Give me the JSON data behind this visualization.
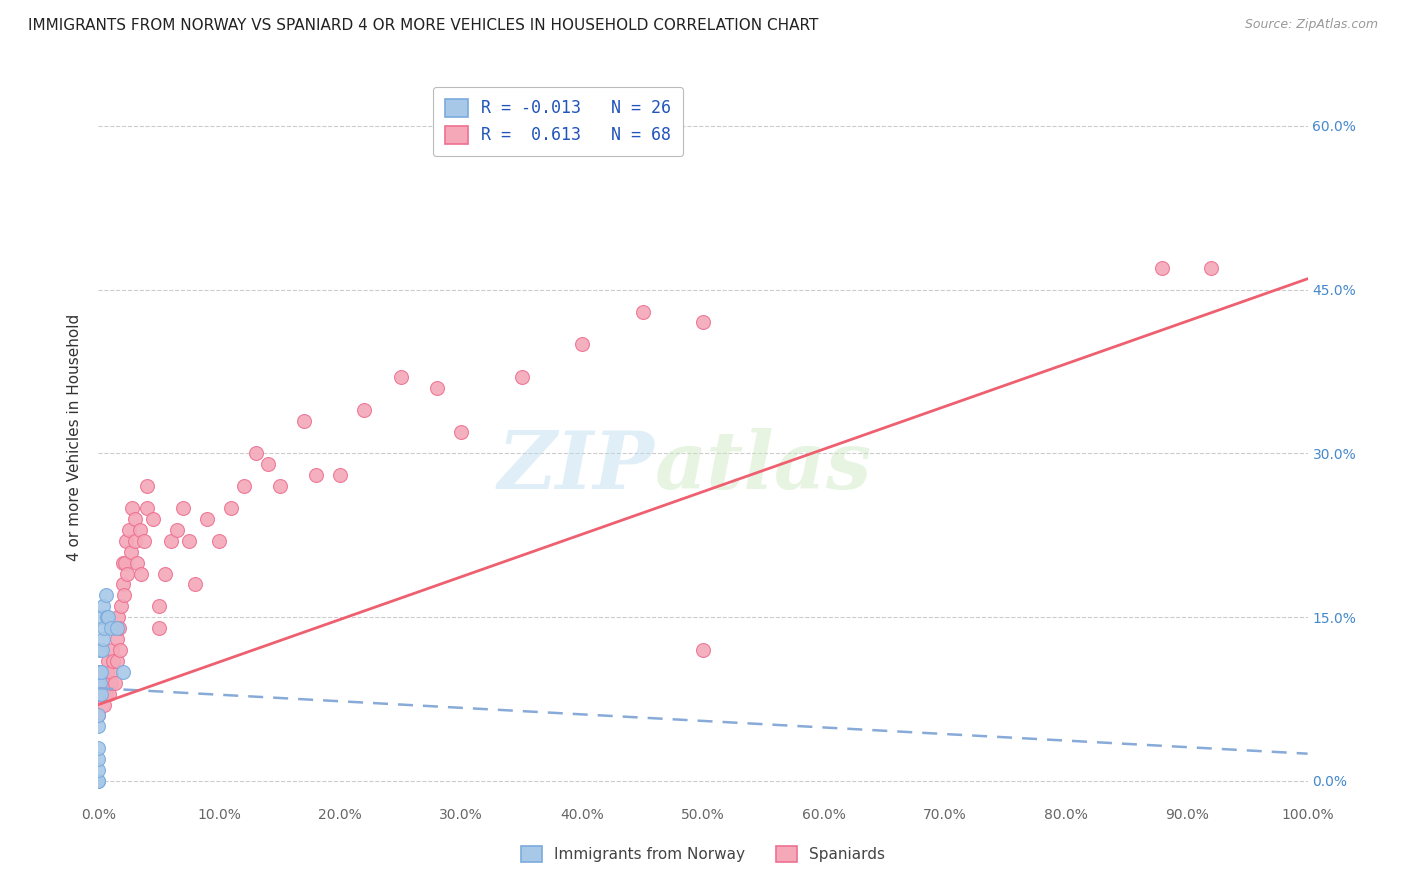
{
  "title": "IMMIGRANTS FROM NORWAY VS SPANIARD 4 OR MORE VEHICLES IN HOUSEHOLD CORRELATION CHART",
  "source": "Source: ZipAtlas.com",
  "ylabel": "4 or more Vehicles in Household",
  "xlim": [
    0,
    1.0
  ],
  "ylim": [
    -0.02,
    0.65
  ],
  "xticks": [
    0.0,
    0.1,
    0.2,
    0.3,
    0.4,
    0.5,
    0.6,
    0.7,
    0.8,
    0.9,
    1.0
  ],
  "xticklabels": [
    "0.0%",
    "10.0%",
    "20.0%",
    "30.0%",
    "40.0%",
    "50.0%",
    "60.0%",
    "70.0%",
    "80.0%",
    "90.0%",
    "100.0%"
  ],
  "yticks": [
    0.0,
    0.15,
    0.3,
    0.45,
    0.6
  ],
  "yticklabels_right": [
    "0.0%",
    "15.0%",
    "30.0%",
    "45.0%",
    "60.0%"
  ],
  "norway_color": "#a8c8e8",
  "spain_color": "#f4a8b8",
  "norway_edge_color": "#7aaadd",
  "spain_edge_color": "#ee7090",
  "norway_line_color": "#88aad8",
  "spain_line_color": "#ee6070",
  "norway_R": -0.013,
  "norway_N": 26,
  "spain_R": 0.613,
  "spain_N": 68,
  "norway_x": [
    0.0,
    0.0,
    0.0,
    0.0,
    0.0,
    0.0,
    0.0,
    0.0,
    0.0,
    0.0,
    0.001,
    0.001,
    0.001,
    0.002,
    0.002,
    0.003,
    0.003,
    0.004,
    0.004,
    0.005,
    0.006,
    0.007,
    0.008,
    0.01,
    0.015,
    0.02
  ],
  "norway_y": [
    0.0,
    0.0,
    0.01,
    0.02,
    0.03,
    0.05,
    0.06,
    0.08,
    0.09,
    0.1,
    0.09,
    0.1,
    0.12,
    0.08,
    0.1,
    0.12,
    0.15,
    0.13,
    0.16,
    0.14,
    0.17,
    0.15,
    0.15,
    0.14,
    0.14,
    0.1
  ],
  "spain_x": [
    0.0,
    0.0,
    0.003,
    0.004,
    0.005,
    0.006,
    0.007,
    0.008,
    0.009,
    0.01,
    0.01,
    0.011,
    0.012,
    0.013,
    0.014,
    0.015,
    0.015,
    0.016,
    0.017,
    0.018,
    0.019,
    0.02,
    0.02,
    0.021,
    0.022,
    0.023,
    0.024,
    0.025,
    0.027,
    0.028,
    0.03,
    0.03,
    0.032,
    0.034,
    0.035,
    0.038,
    0.04,
    0.04,
    0.045,
    0.05,
    0.05,
    0.055,
    0.06,
    0.065,
    0.07,
    0.075,
    0.08,
    0.09,
    0.1,
    0.11,
    0.12,
    0.13,
    0.14,
    0.15,
    0.17,
    0.18,
    0.2,
    0.22,
    0.25,
    0.28,
    0.3,
    0.35,
    0.4,
    0.45,
    0.5,
    0.5,
    0.88,
    0.92
  ],
  "spain_y": [
    0.06,
    0.08,
    0.09,
    0.1,
    0.07,
    0.08,
    0.1,
    0.11,
    0.08,
    0.09,
    0.1,
    0.12,
    0.11,
    0.14,
    0.09,
    0.11,
    0.13,
    0.15,
    0.14,
    0.12,
    0.16,
    0.18,
    0.2,
    0.17,
    0.2,
    0.22,
    0.19,
    0.23,
    0.21,
    0.25,
    0.22,
    0.24,
    0.2,
    0.23,
    0.19,
    0.22,
    0.25,
    0.27,
    0.24,
    0.14,
    0.16,
    0.19,
    0.22,
    0.23,
    0.25,
    0.22,
    0.18,
    0.24,
    0.22,
    0.25,
    0.27,
    0.3,
    0.29,
    0.27,
    0.33,
    0.28,
    0.28,
    0.34,
    0.37,
    0.36,
    0.32,
    0.37,
    0.4,
    0.43,
    0.12,
    0.42,
    0.47,
    0.47
  ],
  "norway_trend_x0": 0.0,
  "norway_trend_y0": 0.085,
  "norway_trend_x1": 1.0,
  "norway_trend_y1": 0.025,
  "spain_trend_x0": 0.0,
  "spain_trend_y0": 0.07,
  "spain_trend_x1": 1.0,
  "spain_trend_y1": 0.46
}
